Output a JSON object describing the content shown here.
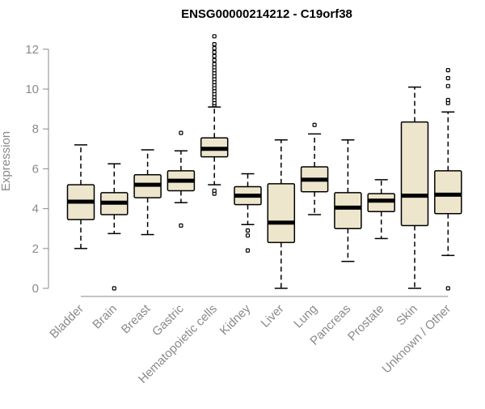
{
  "chart_data": {
    "type": "boxplot",
    "title": "ENSG00000214212 - C19orf38",
    "xlabel": "",
    "ylabel": "Expression",
    "ylim": [
      0,
      12.5
    ],
    "yticks": [
      0,
      2,
      4,
      6,
      8,
      10,
      12
    ],
    "grid": false,
    "colors": {
      "box_fill": "#ede6cc",
      "box_stroke": "#000000",
      "median": "#000000",
      "axis": "#8a8a8a",
      "title": "#000000"
    },
    "categories": [
      "Bladder",
      "Brain",
      "Breast",
      "Gastric",
      "Hematopoietic cells",
      "Kidney",
      "Liver",
      "Lung",
      "Pancreas",
      "Prostate",
      "Skin",
      "Unknown / Other"
    ],
    "boxes": [
      {
        "category": "Bladder",
        "whisker_low": 2.0,
        "q1": 3.45,
        "median": 4.35,
        "q3": 5.2,
        "whisker_high": 7.2,
        "outliers": []
      },
      {
        "category": "Brain",
        "whisker_low": 2.75,
        "q1": 3.7,
        "median": 4.3,
        "q3": 4.8,
        "whisker_high": 6.25,
        "outliers": [
          0.0
        ]
      },
      {
        "category": "Breast",
        "whisker_low": 2.7,
        "q1": 4.55,
        "median": 5.2,
        "q3": 5.7,
        "whisker_high": 6.95,
        "outliers": []
      },
      {
        "category": "Gastric",
        "whisker_low": 4.3,
        "q1": 4.9,
        "median": 5.4,
        "q3": 5.9,
        "whisker_high": 6.9,
        "outliers": [
          3.15,
          7.8
        ]
      },
      {
        "category": "Hematopoietic cells",
        "whisker_low": 5.2,
        "q1": 6.6,
        "median": 7.0,
        "q3": 7.55,
        "whisker_high": 9.1,
        "outliers": [
          4.75,
          4.9,
          9.2,
          9.3,
          9.45,
          9.6,
          9.75,
          9.9,
          10.05,
          10.2,
          10.35,
          10.5,
          10.65,
          10.8,
          10.95,
          11.1,
          11.25,
          11.45,
          11.65,
          11.85,
          12.05,
          12.25,
          12.65
        ]
      },
      {
        "category": "Kidney",
        "whisker_low": 3.2,
        "q1": 4.2,
        "median": 4.65,
        "q3": 5.1,
        "whisker_high": 5.75,
        "outliers": [
          1.9,
          2.65,
          2.9
        ]
      },
      {
        "category": "Liver",
        "whisker_low": 0.0,
        "q1": 2.3,
        "median": 3.3,
        "q3": 5.25,
        "whisker_high": 7.45,
        "outliers": []
      },
      {
        "category": "Lung",
        "whisker_low": 3.7,
        "q1": 4.85,
        "median": 5.45,
        "q3": 6.1,
        "whisker_high": 7.75,
        "outliers": [
          8.2
        ]
      },
      {
        "category": "Pancreas",
        "whisker_low": 1.35,
        "q1": 3.0,
        "median": 4.05,
        "q3": 4.8,
        "whisker_high": 7.45,
        "outliers": []
      },
      {
        "category": "Prostate",
        "whisker_low": 2.5,
        "q1": 3.85,
        "median": 4.4,
        "q3": 4.75,
        "whisker_high": 5.45,
        "outliers": []
      },
      {
        "category": "Skin",
        "whisker_low": 0.0,
        "q1": 3.15,
        "median": 4.65,
        "q3": 8.35,
        "whisker_high": 10.1,
        "outliers": []
      },
      {
        "category": "Unknown / Other",
        "whisker_low": 1.65,
        "q1": 3.75,
        "median": 4.7,
        "q3": 5.9,
        "whisker_high": 8.85,
        "outliers": [
          0.0,
          9.3,
          9.45,
          10.15,
          10.55,
          10.95
        ]
      }
    ]
  }
}
